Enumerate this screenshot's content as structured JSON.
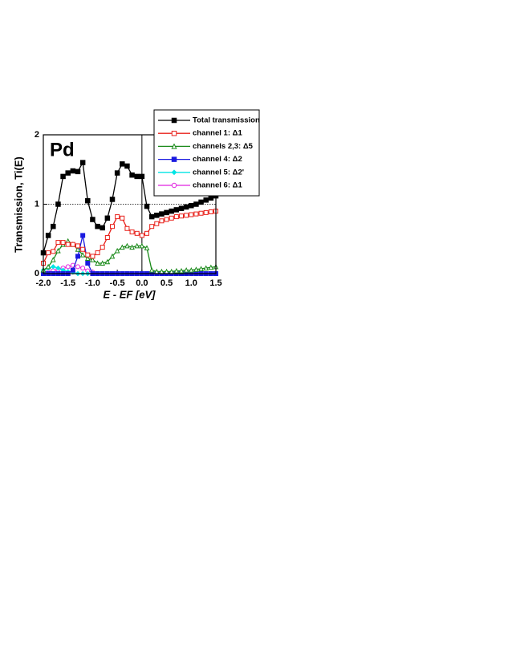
{
  "chart_data": {
    "type": "line",
    "annotation": "Pd",
    "x_label": "E - EF [eV]",
    "y_label": "Transmission, Ti(E)",
    "x": [
      -2.0,
      -1.9,
      -1.8,
      -1.7,
      -1.6,
      -1.5,
      -1.4,
      -1.3,
      -1.2,
      -1.1,
      -1.0,
      -0.9,
      -0.8,
      -0.7,
      -0.6,
      -0.5,
      -0.4,
      -0.3,
      -0.2,
      -0.1,
      0.0,
      0.1,
      0.2,
      0.3,
      0.4,
      0.5,
      0.6,
      0.7,
      0.8,
      0.9,
      1.0,
      1.1,
      1.2,
      1.3,
      1.4,
      1.5
    ],
    "series": [
      {
        "name": "Total transmission",
        "color": "#000000",
        "marker": "square",
        "values": [
          0.3,
          0.55,
          0.68,
          1.0,
          1.4,
          1.45,
          1.48,
          1.47,
          1.6,
          1.05,
          0.78,
          0.68,
          0.66,
          0.8,
          1.07,
          1.45,
          1.58,
          1.55,
          1.42,
          1.4,
          1.4,
          0.97,
          0.82,
          0.84,
          0.86,
          0.88,
          0.9,
          0.92,
          0.94,
          0.96,
          0.98,
          1.0,
          1.03,
          1.06,
          1.09,
          1.12
        ]
      },
      {
        "name": "channel 1: Δ1",
        "color": "#e8201a",
        "marker": "square-open",
        "values": [
          0.15,
          0.3,
          0.32,
          0.45,
          0.45,
          0.42,
          0.42,
          0.4,
          0.35,
          0.27,
          0.25,
          0.3,
          0.38,
          0.52,
          0.68,
          0.82,
          0.8,
          0.65,
          0.6,
          0.58,
          0.55,
          0.58,
          0.68,
          0.72,
          0.76,
          0.78,
          0.8,
          0.82,
          0.83,
          0.84,
          0.85,
          0.86,
          0.87,
          0.88,
          0.89,
          0.9
        ]
      },
      {
        "name": "channels 2,3: Δ5",
        "color": "#1a8a1a",
        "marker": "triangle-open",
        "values": [
          0.05,
          0.1,
          0.2,
          0.33,
          0.42,
          0.47,
          0.42,
          0.35,
          0.27,
          0.22,
          0.2,
          0.15,
          0.15,
          0.17,
          0.25,
          0.33,
          0.38,
          0.4,
          0.38,
          0.4,
          0.4,
          0.37,
          0.05,
          0.03,
          0.03,
          0.03,
          0.03,
          0.04,
          0.04,
          0.05,
          0.05,
          0.06,
          0.07,
          0.08,
          0.09,
          0.1
        ]
      },
      {
        "name": "channel 4: Δ2",
        "color": "#1a1ae0",
        "marker": "square",
        "values": [
          0,
          0,
          0,
          0,
          0,
          0,
          0.05,
          0.25,
          0.55,
          0.15,
          0,
          0,
          0,
          0,
          0,
          0,
          0,
          0,
          0,
          0,
          0,
          0,
          0,
          0,
          0,
          0,
          0,
          0,
          0,
          0,
          0,
          0,
          0,
          0,
          0,
          0
        ]
      },
      {
        "name": "channel 5: Δ2'",
        "color": "#00e5e5",
        "marker": "diamond",
        "values": [
          0.05,
          0.08,
          0.1,
          0.08,
          0.05,
          0.03,
          0.02,
          0,
          0,
          0,
          0,
          0,
          0,
          0,
          0,
          0,
          0,
          0,
          0,
          0,
          0,
          0,
          0,
          0,
          0,
          0,
          0,
          0,
          0,
          0,
          0,
          0,
          0,
          0,
          0,
          0
        ]
      },
      {
        "name": "channel 6: Δ1",
        "color": "#e020e0",
        "marker": "circle-open",
        "values": [
          0,
          0.02,
          0.04,
          0.06,
          0.08,
          0.1,
          0.12,
          0.1,
          0.08,
          0.04,
          0.02,
          0,
          0,
          0,
          0,
          0,
          0,
          0,
          0,
          0,
          0,
          0,
          0,
          0,
          0,
          0,
          0,
          0,
          0,
          0,
          0,
          0,
          0,
          0,
          0,
          0
        ]
      }
    ],
    "xlim": [
      -2.0,
      1.5
    ],
    "xticks": [
      {
        "value": -2.0,
        "label": "-2.0"
      },
      -1.5,
      {
        "value": -1.0,
        "label": "-1.0"
      },
      -0.5,
      {
        "value": 0.0,
        "label": "0.0"
      },
      0.5,
      {
        "value": 1.0,
        "label": "1.0"
      },
      1.5
    ],
    "ylim": [
      0,
      2
    ],
    "yticks": [
      0,
      1,
      2
    ],
    "vlines": [
      0
    ],
    "hlines": [
      1
    ]
  }
}
